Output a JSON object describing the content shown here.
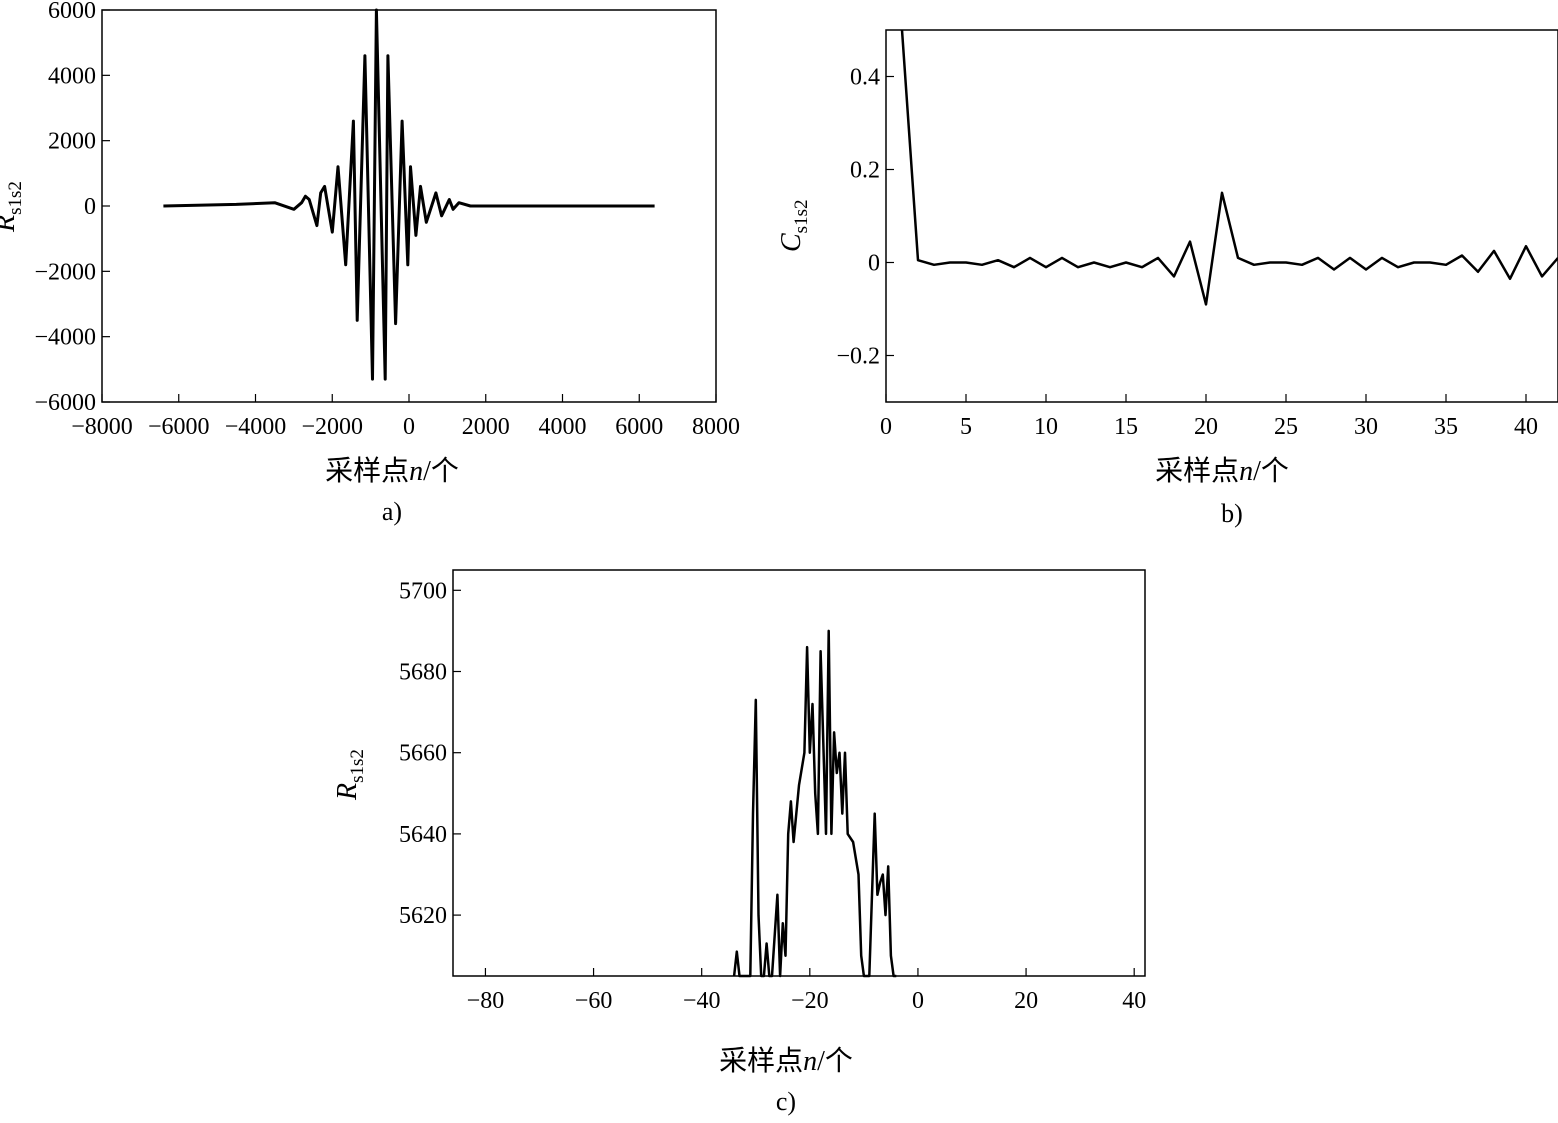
{
  "chart_data": [
    {
      "type": "line",
      "caption": "a)",
      "xlabel": "采样点n/个",
      "ylabel": "R",
      "ylabel_sub": "s1s2",
      "xlim": [
        -8000,
        8000
      ],
      "ylim": [
        -6000,
        6000
      ],
      "xticks": [
        -8000,
        -6000,
        -4000,
        -2000,
        0,
        2000,
        4000,
        6000,
        8000
      ],
      "xtick_labels": [
        "−8000",
        "−6000",
        "−4000",
        "−2000",
        "0",
        "2000",
        "4000",
        "6000",
        "8000"
      ],
      "yticks": [
        6000,
        4000,
        2000,
        0,
        -2000,
        -4000,
        -6000
      ],
      "ytick_labels": [
        "6000",
        "4000",
        "2000",
        "0",
        "−2000",
        "−4000",
        "−6000"
      ],
      "series": [
        {
          "x": [
            -6400,
            -4500,
            -3500,
            -3000,
            -2800,
            -2700,
            -2600,
            -2400,
            -2300,
            -2200,
            -2000,
            -1850,
            -1650,
            -1450,
            -1350,
            -1150,
            -950,
            -850,
            -620,
            -550,
            -350,
            -180,
            -30,
            40,
            180,
            300,
            450,
            700,
            850,
            1050,
            1150,
            1300,
            1600,
            1700,
            2000,
            2300,
            2500,
            2800,
            3000,
            3500,
            4500,
            6400
          ],
          "y": [
            0,
            50,
            100,
            -100,
            100,
            300,
            200,
            -600,
            400,
            600,
            -800,
            1200,
            -1800,
            2600,
            -3500,
            4600,
            -5300,
            6000,
            -5300,
            4600,
            -3600,
            2600,
            -1800,
            1200,
            -900,
            600,
            -500,
            400,
            -300,
            200,
            -100,
            100,
            0,
            0,
            0,
            0,
            0,
            0,
            0,
            0,
            0,
            0
          ]
        }
      ]
    },
    {
      "type": "line",
      "caption": "b)",
      "xlabel": "采样点n/个",
      "ylabel": "C",
      "ylabel_sub": "s1s2",
      "xlim": [
        0,
        42
      ],
      "ylim": [
        -0.3,
        0.5
      ],
      "xticks": [
        0,
        5,
        10,
        15,
        20,
        25,
        30,
        35,
        40
      ],
      "xtick_labels": [
        "0",
        "5",
        "10",
        "15",
        "20",
        "25",
        "30",
        "35",
        "40"
      ],
      "yticks": [
        0.4,
        0.2,
        0,
        -0.2
      ],
      "ytick_labels": [
        "0.4",
        "0.2",
        "0",
        "−0.2"
      ],
      "series": [
        {
          "x": [
            1,
            2,
            3,
            4,
            5,
            6,
            7,
            8,
            9,
            10,
            11,
            12,
            13,
            14,
            15,
            16,
            17,
            18,
            19,
            20,
            21,
            22,
            23,
            24,
            25,
            26,
            27,
            28,
            29,
            30,
            31,
            32,
            33,
            34,
            35,
            36,
            37,
            38,
            39,
            40,
            41,
            42
          ],
          "y": [
            0.5,
            0.005,
            -0.005,
            0.0,
            0.0,
            -0.005,
            0.005,
            -0.01,
            0.01,
            -0.01,
            0.01,
            -0.01,
            0.0,
            -0.01,
            0.0,
            -0.01,
            0.01,
            -0.03,
            0.045,
            -0.09,
            0.15,
            0.01,
            -0.005,
            0.0,
            0.0,
            -0.005,
            0.01,
            -0.015,
            0.01,
            -0.015,
            0.01,
            -0.01,
            0.0,
            0.0,
            -0.005,
            0.015,
            -0.02,
            0.025,
            -0.035,
            0.035,
            -0.03,
            0.01
          ]
        }
      ]
    },
    {
      "type": "line",
      "caption": "c)",
      "xlabel": "采样点n/个",
      "ylabel": "R",
      "ylabel_sub": "s1s2",
      "xlim": [
        -86,
        42
      ],
      "ylim": [
        5605,
        5705
      ],
      "xticks": [
        -80,
        -60,
        -40,
        -20,
        0,
        20,
        40
      ],
      "xtick_labels": [
        "−80",
        "−60",
        "−40",
        "−20",
        "0",
        "20",
        "40"
      ],
      "yticks": [
        5700,
        5680,
        5660,
        5640,
        5620
      ],
      "ytick_labels": [
        "5700",
        "5680",
        "5660",
        "5640",
        "5620"
      ],
      "series": [
        {
          "x": [
            -34,
            -33.5,
            -33,
            -32,
            -31,
            -30.5,
            -30,
            -29.5,
            -29,
            -28.5,
            -28,
            -27.5,
            -27,
            -26,
            -25.5,
            -25,
            -24.5,
            -24,
            -23.5,
            -23,
            -22,
            -21,
            -20.5,
            -20,
            -19.5,
            -19,
            -18.5,
            -18,
            -17,
            -16.5,
            -16,
            -15.5,
            -15,
            -14.5,
            -14,
            -13.5,
            -13,
            -12,
            -11,
            -10.5,
            -10,
            -9.5,
            -9,
            -8.5,
            -8,
            -7.5,
            -7,
            -6.5,
            -6,
            -5.5,
            -5,
            -4.5,
            -4
          ],
          "y": [
            5605,
            5611,
            5605,
            5605,
            5605,
            5645,
            5673,
            5620,
            5605,
            5605,
            5613,
            5605,
            5605,
            5625,
            5605,
            5618,
            5610,
            5640,
            5648,
            5638,
            5652,
            5660,
            5686,
            5660,
            5672,
            5650,
            5640,
            5685,
            5640,
            5690,
            5640,
            5665,
            5655,
            5660,
            5645,
            5660,
            5640,
            5638,
            5630,
            5610,
            5605,
            5605,
            5605,
            5625,
            5645,
            5625,
            5628,
            5630,
            5620,
            5632,
            5610,
            5605,
            5605
          ]
        }
      ]
    }
  ]
}
